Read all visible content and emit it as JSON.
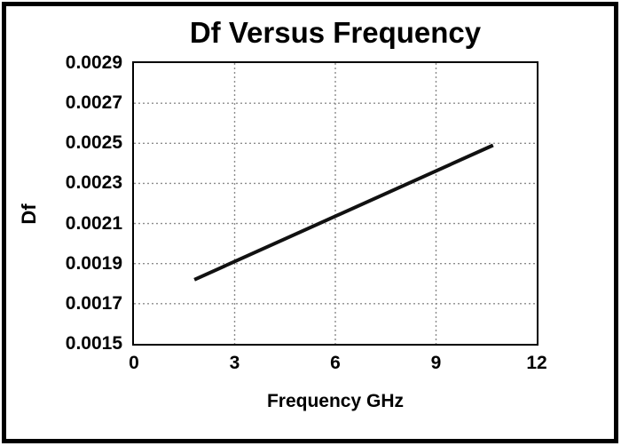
{
  "frame": {
    "background": "#ffffff",
    "border_color": "#000000"
  },
  "chart_data": {
    "type": "line",
    "title": "Df Versus Frequency",
    "xlabel": "Frequency GHz",
    "ylabel": "Df",
    "xlim": [
      0,
      12
    ],
    "ylim": [
      0.0015,
      0.0029
    ],
    "xticks": [
      0,
      3,
      6,
      9,
      12
    ],
    "xtick_labels": [
      "0",
      "3",
      "6",
      "9",
      "12"
    ],
    "yticks": [
      0.0015,
      0.0017,
      0.0019,
      0.0021,
      0.0023,
      0.0025,
      0.0027,
      0.0029
    ],
    "ytick_labels": [
      "0.0015",
      "0.0017",
      "0.0019",
      "0.0021",
      "0.0023",
      "0.0025",
      "0.0027",
      "0.0029"
    ],
    "grid": true,
    "legend": false,
    "axis_color": "#000000",
    "gridline_color": "#8c8c8c",
    "series": [
      {
        "name": "Df",
        "color": "#111111",
        "points": [
          [
            1.8,
            0.00182
          ],
          [
            10.7,
            0.00249
          ]
        ]
      }
    ]
  }
}
